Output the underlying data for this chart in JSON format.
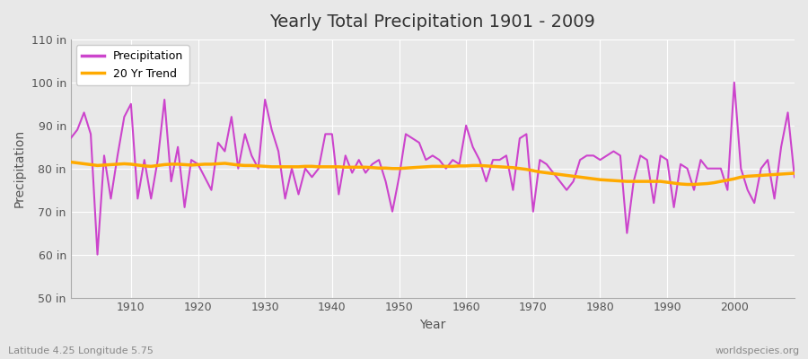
{
  "title": "Yearly Total Precipitation 1901 - 2009",
  "xlabel": "Year",
  "ylabel": "Precipitation",
  "subtitle": "Latitude 4.25 Longitude 5.75",
  "watermark": "worldspecies.org",
  "ylim": [
    50,
    110
  ],
  "yticks": [
    50,
    60,
    70,
    80,
    90,
    100,
    110
  ],
  "ytick_labels": [
    "50 in",
    "60 in",
    "70 in",
    "80 in",
    "90 in",
    "100 in",
    "110 in"
  ],
  "xlim": [
    1901,
    2009
  ],
  "xticks": [
    1910,
    1920,
    1930,
    1940,
    1950,
    1960,
    1970,
    1980,
    1990,
    2000
  ],
  "precip_color": "#cc44cc",
  "trend_color": "#ffaa00",
  "bg_color": "#e0e0e0",
  "plot_bg_color": "#e8e8e8",
  "grid_color": "#ffffff",
  "years": [
    1901,
    1902,
    1903,
    1904,
    1905,
    1906,
    1907,
    1908,
    1909,
    1910,
    1911,
    1912,
    1913,
    1914,
    1915,
    1916,
    1917,
    1918,
    1919,
    1920,
    1921,
    1922,
    1923,
    1924,
    1925,
    1926,
    1927,
    1928,
    1929,
    1930,
    1931,
    1932,
    1933,
    1934,
    1935,
    1936,
    1937,
    1938,
    1939,
    1940,
    1941,
    1942,
    1943,
    1944,
    1945,
    1946,
    1947,
    1948,
    1949,
    1950,
    1951,
    1952,
    1953,
    1954,
    1955,
    1956,
    1957,
    1958,
    1959,
    1960,
    1961,
    1962,
    1963,
    1964,
    1965,
    1966,
    1967,
    1968,
    1969,
    1970,
    1971,
    1972,
    1973,
    1974,
    1975,
    1976,
    1977,
    1978,
    1979,
    1980,
    1981,
    1982,
    1983,
    1984,
    1985,
    1986,
    1987,
    1988,
    1989,
    1990,
    1991,
    1992,
    1993,
    1994,
    1995,
    1996,
    1997,
    1998,
    1999,
    2000,
    2001,
    2002,
    2003,
    2004,
    2005,
    2006,
    2007,
    2008,
    2009
  ],
  "precip": [
    87,
    89,
    93,
    88,
    60,
    83,
    73,
    83,
    92,
    95,
    73,
    82,
    73,
    82,
    96,
    77,
    85,
    71,
    82,
    81,
    78,
    75,
    86,
    84,
    92,
    80,
    88,
    83,
    80,
    96,
    89,
    84,
    73,
    80,
    74,
    80,
    78,
    80,
    88,
    88,
    74,
    83,
    79,
    82,
    79,
    81,
    82,
    77,
    70,
    78,
    88,
    87,
    86,
    82,
    83,
    82,
    80,
    82,
    81,
    90,
    85,
    82,
    77,
    82,
    82,
    83,
    75,
    87,
    88,
    70,
    82,
    81,
    79,
    77,
    75,
    77,
    82,
    83,
    83,
    82,
    83,
    84,
    83,
    65,
    77,
    83,
    82,
    72,
    83,
    82,
    71,
    81,
    80,
    75,
    82,
    80,
    80,
    80,
    75,
    100,
    80,
    75,
    72,
    80,
    82,
    73,
    85,
    93,
    78
  ],
  "trend": [
    81.5,
    81.3,
    81.1,
    80.9,
    80.7,
    80.8,
    80.9,
    81.0,
    81.1,
    81.0,
    80.8,
    80.6,
    80.5,
    80.7,
    80.9,
    81.0,
    81.0,
    80.9,
    80.8,
    80.9,
    81.0,
    81.0,
    81.1,
    81.2,
    81.0,
    80.8,
    80.7,
    80.7,
    80.6,
    80.5,
    80.4,
    80.4,
    80.4,
    80.4,
    80.4,
    80.5,
    80.5,
    80.4,
    80.4,
    80.4,
    80.4,
    80.3,
    80.3,
    80.3,
    80.3,
    80.2,
    80.1,
    80.1,
    80.0,
    80.0,
    80.1,
    80.2,
    80.3,
    80.4,
    80.5,
    80.5,
    80.5,
    80.5,
    80.6,
    80.6,
    80.7,
    80.7,
    80.6,
    80.5,
    80.4,
    80.3,
    80.2,
    80.0,
    79.8,
    79.5,
    79.2,
    79.0,
    78.8,
    78.6,
    78.4,
    78.2,
    78.0,
    77.8,
    77.6,
    77.4,
    77.3,
    77.2,
    77.1,
    77.0,
    77.0,
    77.0,
    77.0,
    77.0,
    77.0,
    76.8,
    76.6,
    76.4,
    76.3,
    76.3,
    76.4,
    76.5,
    76.7,
    77.0,
    77.3,
    77.6,
    78.0,
    78.2,
    78.3,
    78.4,
    78.5,
    78.6,
    78.7,
    78.8,
    78.9
  ]
}
